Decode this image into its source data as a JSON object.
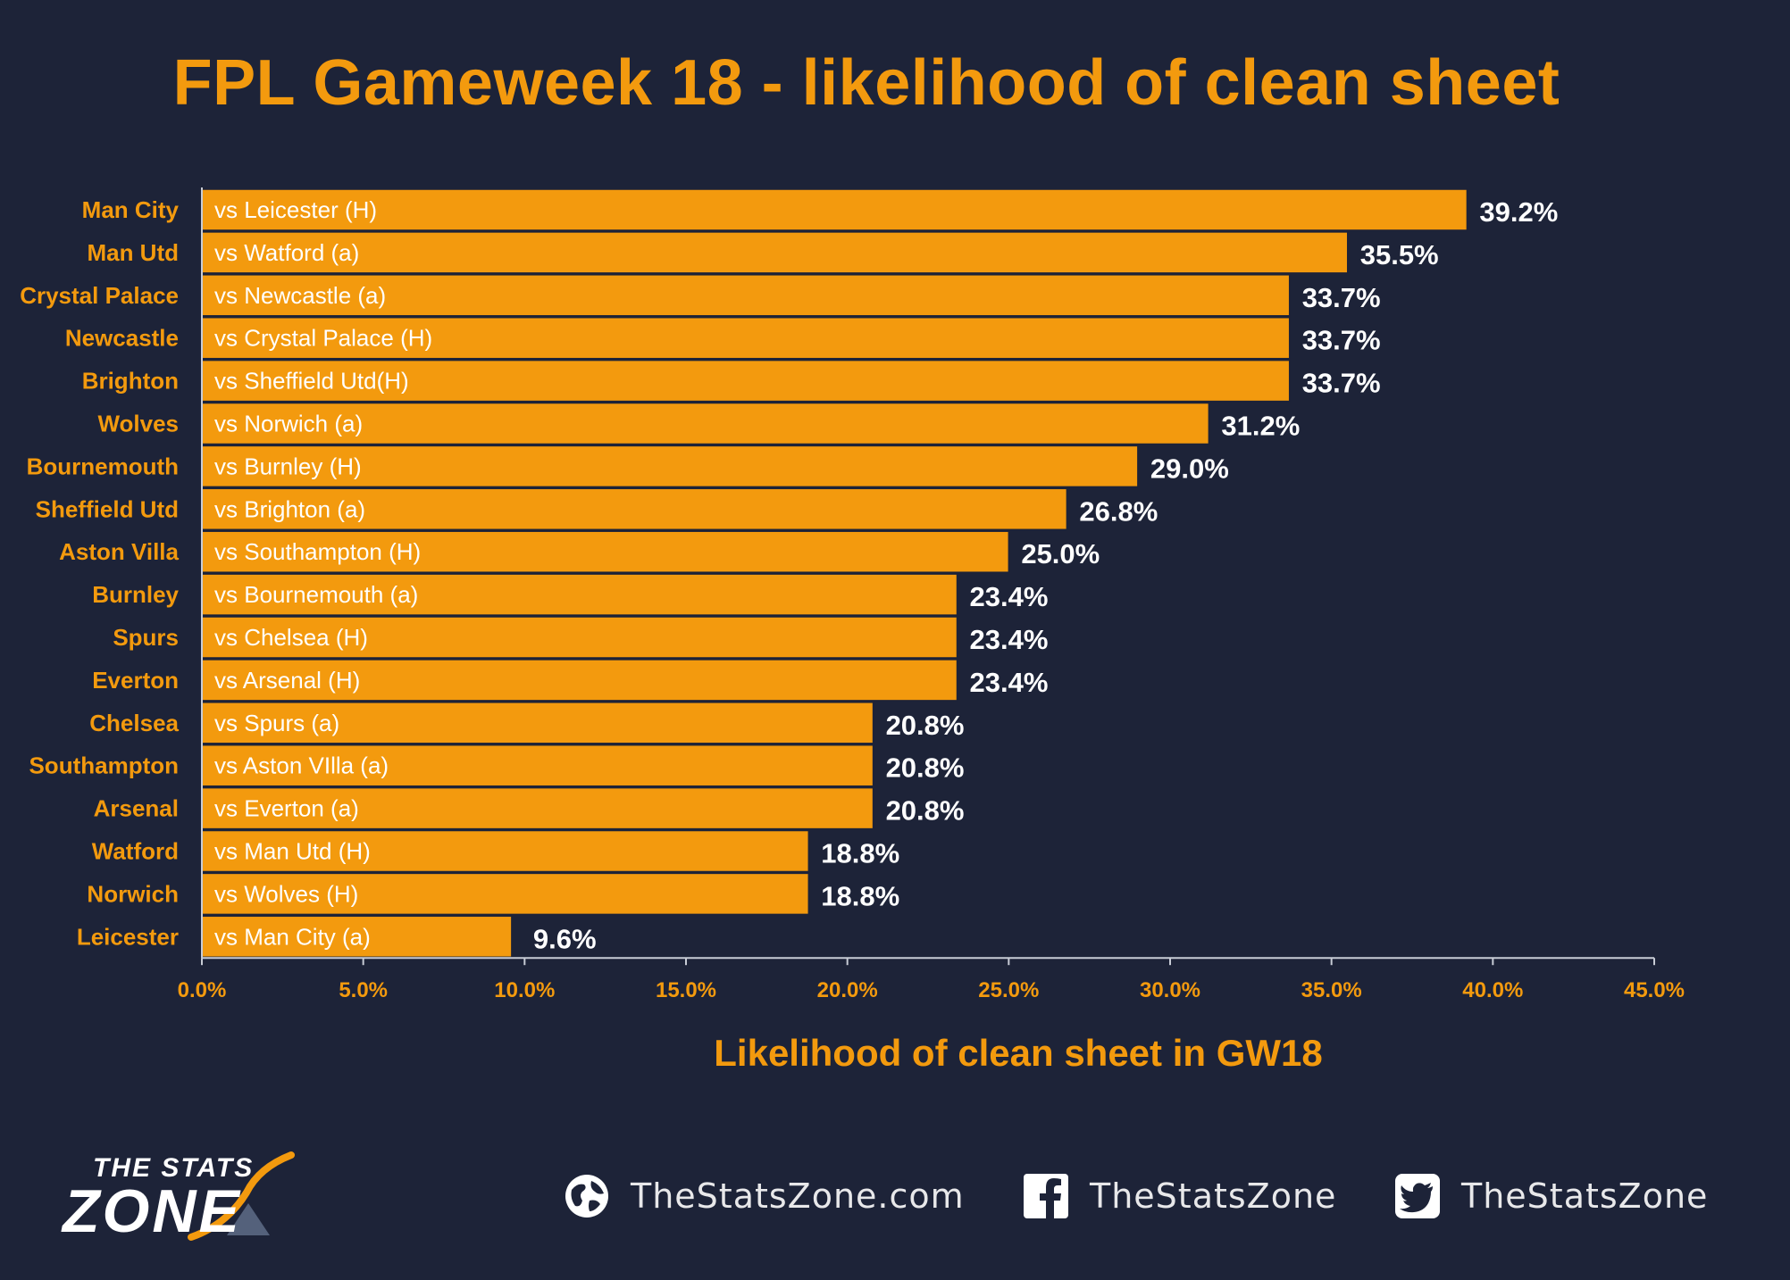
{
  "chart_data": {
    "type": "bar",
    "orientation": "horizontal",
    "title": "FPL Gameweek 18 - likelihood of clean sheet",
    "xlabel": "Likelihood of clean sheet in GW18",
    "ylabel": "",
    "xlim": [
      0,
      45
    ],
    "ticks": [
      "0.0%",
      "5.0%",
      "10.0%",
      "15.0%",
      "20.0%",
      "25.0%",
      "30.0%",
      "35.0%",
      "40.0%",
      "45.0%"
    ],
    "grid": false,
    "bar_color": "#f39a0e",
    "categories": [
      "Man City",
      "Man Utd",
      "Crystal Palace",
      "Newcastle",
      "Brighton",
      "Wolves",
      "Bournemouth",
      "Sheffield Utd",
      "Aston Villa",
      "Burnley",
      "Spurs",
      "Everton",
      "Chelsea",
      "Southampton",
      "Arsenal",
      "Watford",
      "Norwich",
      "Leicester"
    ],
    "fixtures": [
      "vs Leicester (H)",
      "vs Watford (a)",
      "vs Newcastle (a)",
      "vs Crystal Palace (H)",
      "vs Sheffield Utd(H)",
      "vs Norwich (a)",
      "vs Burnley (H)",
      "vs Brighton (a)",
      "vs Southampton (H)",
      "vs Bournemouth (a)",
      "vs Chelsea (H)",
      "vs Arsenal (H)",
      "vs Spurs (a)",
      "vs Aston VIlla (a)",
      "vs Everton (a)",
      "vs Man Utd (H)",
      "vs Wolves (H)",
      "vs Man City (a)"
    ],
    "values": [
      39.2,
      35.5,
      33.7,
      33.7,
      33.7,
      31.2,
      29.0,
      26.8,
      25.0,
      23.4,
      23.4,
      23.4,
      20.8,
      20.8,
      20.8,
      18.8,
      18.8,
      9.6
    ],
    "value_labels": [
      "39.2%",
      "35.5%",
      "33.7%",
      "33.7%",
      "33.7%",
      "31.2%",
      "29.0%",
      "26.8%",
      "25.0%",
      "23.4%",
      "23.4%",
      "23.4%",
      "20.8%",
      "20.8%",
      "20.8%",
      "18.8%",
      "18.8%",
      "9.6%"
    ]
  },
  "colors": {
    "background": "#1d2338",
    "accent": "#f39a0e",
    "text_on_dark": "#ffffff"
  },
  "branding": {
    "logo_top": "THE STATS",
    "logo_bottom": "ZONE",
    "website": "TheStatsZone.com",
    "facebook": "TheStatsZone",
    "twitter": "TheStatsZone",
    "icons": [
      "globe-icon",
      "facebook-icon",
      "twitter-icon"
    ]
  }
}
